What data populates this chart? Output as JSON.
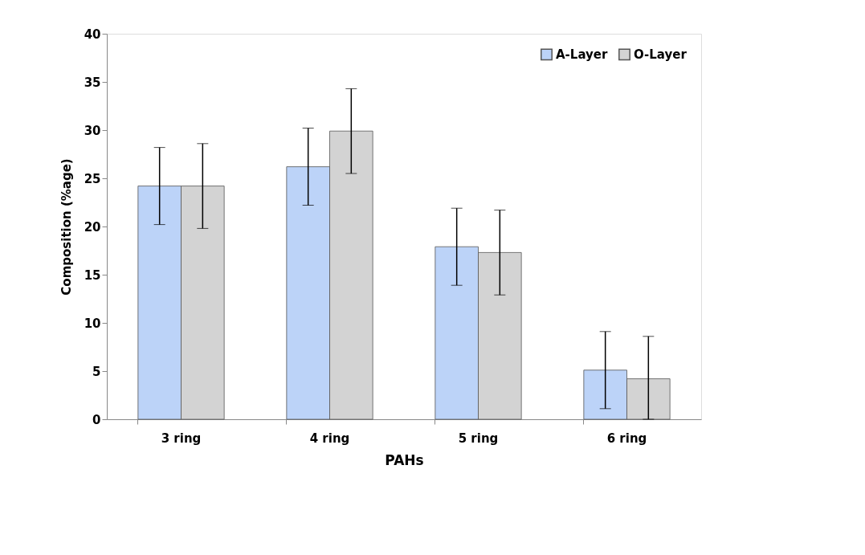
{
  "chart_data": {
    "type": "bar",
    "xlabel": "PAHs",
    "ylabel": "Composition (%age)",
    "categories": [
      "3 ring",
      "4 ring",
      "5 ring",
      "6 ring"
    ],
    "series": [
      {
        "name": "A-Layer",
        "color": "#bcd3f8",
        "values": [
          24.2,
          26.2,
          17.9,
          5.1
        ],
        "errors": [
          4.0,
          4.0,
          4.0,
          4.0
        ]
      },
      {
        "name": "O-Layer",
        "color": "#d3d3d3",
        "values": [
          24.2,
          29.9,
          17.3,
          4.2
        ],
        "errors": [
          4.4,
          4.4,
          4.4,
          [
            0,
            8.6
          ]
        ]
      }
    ],
    "ylim": [
      0,
      40
    ],
    "yticks": [
      0,
      5,
      10,
      15,
      20,
      25,
      30,
      35,
      40
    ],
    "grid": false,
    "legend": "top right"
  }
}
